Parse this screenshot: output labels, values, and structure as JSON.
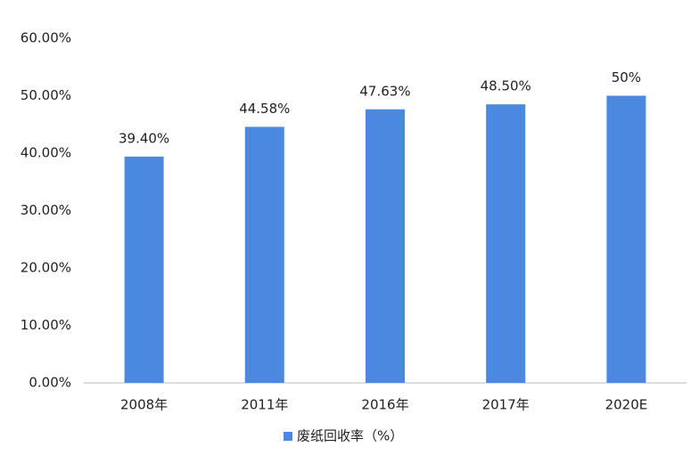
{
  "chart_data": {
    "type": "bar",
    "categories": [
      "2008年",
      "2011年",
      "2016年",
      "2017年",
      "2020E"
    ],
    "series": [
      {
        "name": "废纸回收率（%）",
        "color": "#4a89df",
        "values": [
          39.4,
          44.58,
          47.63,
          48.5,
          50
        ],
        "value_labels": [
          "39.40%",
          "44.58%",
          "47.63%",
          "48.50%",
          "50%"
        ]
      }
    ],
    "ylim": [
      0,
      60
    ],
    "yticks": [
      {
        "value": 0,
        "label": "0.00%"
      },
      {
        "value": 10,
        "label": "10.00%"
      },
      {
        "value": 20,
        "label": "20.00%"
      },
      {
        "value": 30,
        "label": "30.00%"
      },
      {
        "value": 40,
        "label": "40.00%"
      },
      {
        "value": 50,
        "label": "50.00%"
      },
      {
        "value": 60,
        "label": "60.00%"
      }
    ],
    "grid": false,
    "legend": "bottom"
  }
}
